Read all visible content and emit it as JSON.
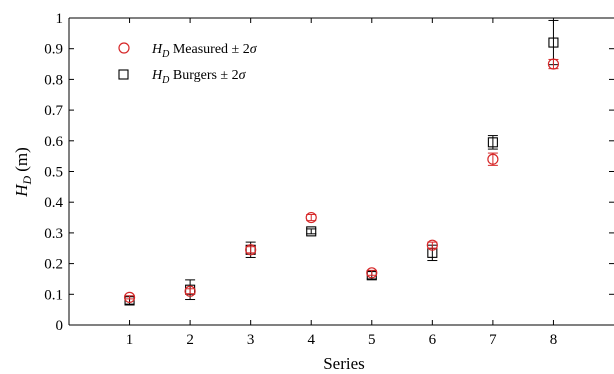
{
  "chart_data": {
    "type": "scatter",
    "xlabel": "Series",
    "ylabel_main": "H",
    "ylabel_sub": "D",
    "ylabel_unit": "(m)",
    "xlim": [
      0,
      9
    ],
    "ylim": [
      0,
      1
    ],
    "x_ticks": [
      "1",
      "2",
      "3",
      "4",
      "5",
      "6",
      "7",
      "8"
    ],
    "y_ticks": [
      "0",
      "0.1",
      "0.2",
      "0.3",
      "0.4",
      "0.5",
      "0.6",
      "0.7",
      "0.8",
      "0.9",
      "1"
    ],
    "grid": false,
    "legend_position": "top-left",
    "series": [
      {
        "legend_main": "H",
        "legend_sub": "D",
        "legend_rest": " Measured ± 2",
        "legend_sigma": "σ",
        "marker": "circle",
        "color": "#d62728",
        "x": [
          1,
          2,
          3,
          4,
          5,
          6,
          7,
          8
        ],
        "y": [
          0.09,
          0.11,
          0.245,
          0.35,
          0.17,
          0.26,
          0.54,
          0.85
        ],
        "err": [
          0.005,
          0.008,
          0.01,
          0.01,
          0.008,
          0.01,
          0.02,
          0.015
        ]
      },
      {
        "legend_main": "H",
        "legend_sub": "D",
        "legend_rest": " Burgers ± 2",
        "legend_sigma": "σ",
        "marker": "square",
        "color": "#000000",
        "x": [
          1,
          2,
          3,
          4,
          5,
          6,
          7,
          8
        ],
        "y": [
          0.08,
          0.115,
          0.245,
          0.305,
          0.162,
          0.235,
          0.595,
          0.92
        ],
        "err": [
          0.012,
          0.032,
          0.025,
          0.008,
          0.012,
          0.025,
          0.022,
          0.072
        ]
      }
    ]
  }
}
